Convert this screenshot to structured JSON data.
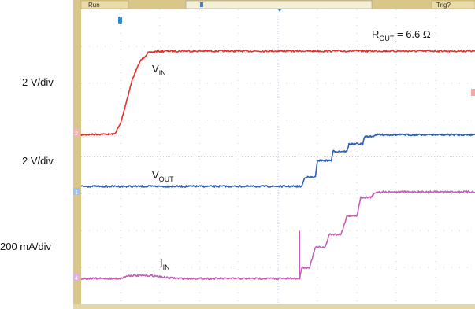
{
  "header": {
    "left_label": "Run",
    "right_label": "Trig?"
  },
  "annotations": {
    "rout_main": "R",
    "rout_sub": "OUT",
    "rout_rest": " = 6.6 Ω"
  },
  "scale_labels": {
    "vin": "2 V/div",
    "vout": "2 V/div",
    "iin": "200 mA/div"
  },
  "channel_markers": {
    "ch1": "1",
    "ch2": "2",
    "ch4": "4"
  },
  "colors": {
    "frame": "#d8c68a",
    "grid": "#c9cfe0",
    "vin": "#e8302a",
    "vout": "#2d5fb5",
    "iin": "#c45fb7",
    "trigger_marker": "#2d8ad0"
  },
  "chart_data": {
    "type": "line",
    "title": "",
    "grid": true,
    "x_divisions": 10,
    "y_divisions": 8,
    "xlim": [
      0,
      10
    ],
    "ylim": [
      0,
      8
    ],
    "series": [
      {
        "name": "V",
        "name_sub": "IN",
        "color": "#e8302a",
        "x": [
          0,
          0.85,
          1.0,
          1.15,
          1.3,
          1.5,
          1.7,
          1.9,
          2.2,
          2.6,
          3.0,
          10
        ],
        "y": [
          4.6,
          4.62,
          4.9,
          5.5,
          6.1,
          6.6,
          6.82,
          6.86,
          6.87,
          6.87,
          6.87,
          6.87
        ]
      },
      {
        "name": "V",
        "name_sub": "OUT",
        "color": "#2d5fb5",
        "x": [
          0,
          5.6,
          5.68,
          5.82,
          5.95,
          6.0,
          6.08,
          6.22,
          6.35,
          6.4,
          6.48,
          6.62,
          6.75,
          6.8,
          6.88,
          7.02,
          7.15,
          7.2,
          7.28,
          7.4,
          7.48,
          7.6,
          7.68,
          7.8,
          10
        ],
        "y": [
          3.2,
          3.2,
          3.45,
          3.45,
          3.45,
          3.9,
          3.9,
          3.9,
          3.9,
          4.15,
          4.15,
          4.15,
          4.15,
          4.35,
          4.35,
          4.35,
          4.35,
          4.55,
          4.55,
          4.55,
          4.6,
          4.6,
          4.6,
          4.6,
          4.6
        ]
      },
      {
        "name": "I",
        "name_sub": "IN",
        "color": "#c45fb7",
        "x": [
          0,
          1.0,
          1.2,
          1.8,
          2.2,
          2.6,
          3.0,
          5.55,
          5.6,
          5.75,
          5.8,
          5.95,
          6.05,
          6.2,
          6.3,
          6.5,
          6.6,
          6.75,
          6.85,
          7.0,
          7.1,
          7.25,
          7.35,
          7.5,
          7.6,
          10
        ],
        "y": [
          0.7,
          0.7,
          0.78,
          0.78,
          0.72,
          0.7,
          0.7,
          0.7,
          1.0,
          1.0,
          1.0,
          1.55,
          1.55,
          1.55,
          1.9,
          1.9,
          1.9,
          2.4,
          2.4,
          2.4,
          2.9,
          2.9,
          2.9,
          3.05,
          3.05,
          3.05
        ]
      }
    ]
  }
}
